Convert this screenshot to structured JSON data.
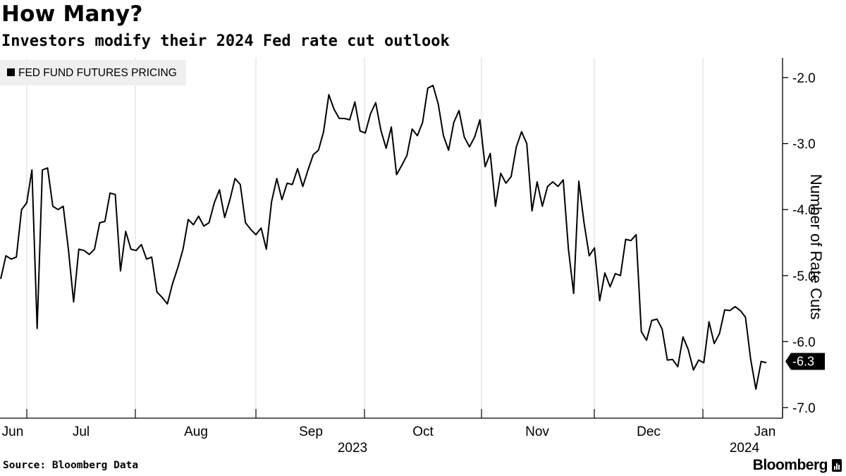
{
  "title": "How Many?",
  "subtitle": "Investors modify their 2024 Fed rate cut outlook",
  "source": "Source: Bloomberg Data",
  "brand": "Bloomberg",
  "colors": {
    "line": "#000000",
    "grid": "#d9d9d9",
    "legend_bg": "#efefef",
    "callout_bg": "#000000"
  },
  "chart_data": {
    "type": "line",
    "title": "How Many?",
    "subtitle": "Investors modify their 2024 Fed rate cut outlook",
    "ylabel": "Number of Rate Cuts",
    "xlabel": "",
    "legend": [
      "FED FUND FUTURES PRICING"
    ],
    "legend_position": "top-left",
    "y_axis_side": "right",
    "ylim": [
      -7.0,
      -2.0
    ],
    "y_ticks": [
      "-2.0",
      "-3.0",
      "-4.0",
      "-5.0",
      "-6.0",
      "-7.0"
    ],
    "x_ticks": [
      "Jun",
      "Jul",
      "Aug",
      "Sep",
      "Oct",
      "Nov",
      "Dec",
      "Jan"
    ],
    "x_year_labels": [
      "2023",
      "2024"
    ],
    "last_value_label": "-6.3",
    "series": [
      {
        "name": "FED FUND FUTURES PRICING",
        "values": [
          -5.05,
          -4.7,
          -4.75,
          -4.72,
          -4.0,
          -3.9,
          -3.4,
          -5.8,
          -3.4,
          -3.37,
          -3.95,
          -4.0,
          -3.95,
          -4.6,
          -5.4,
          -4.6,
          -4.62,
          -4.68,
          -4.6,
          -4.2,
          -4.18,
          -3.75,
          -3.77,
          -4.93,
          -4.33,
          -4.6,
          -4.62,
          -4.53,
          -4.75,
          -4.72,
          -5.25,
          -5.33,
          -5.43,
          -5.12,
          -4.88,
          -4.6,
          -4.15,
          -4.23,
          -4.1,
          -4.25,
          -4.2,
          -3.9,
          -3.7,
          -4.12,
          -3.85,
          -3.53,
          -3.62,
          -4.2,
          -4.3,
          -4.38,
          -4.28,
          -4.6,
          -3.88,
          -3.53,
          -3.85,
          -3.6,
          -3.62,
          -3.38,
          -3.65,
          -3.4,
          -3.17,
          -3.1,
          -2.82,
          -2.26,
          -2.48,
          -2.62,
          -2.62,
          -2.64,
          -2.37,
          -2.81,
          -2.84,
          -2.55,
          -2.38,
          -2.8,
          -3.07,
          -2.75,
          -3.47,
          -3.33,
          -3.18,
          -2.78,
          -2.88,
          -2.68,
          -2.16,
          -2.12,
          -2.4,
          -2.88,
          -3.1,
          -2.68,
          -2.5,
          -2.9,
          -3.05,
          -2.9,
          -2.64,
          -3.35,
          -3.15,
          -3.95,
          -3.45,
          -3.6,
          -3.5,
          -3.05,
          -2.82,
          -3.0,
          -4.02,
          -3.58,
          -3.95,
          -3.65,
          -3.58,
          -3.65,
          -3.55,
          -4.6,
          -5.27,
          -3.57,
          -4.2,
          -4.7,
          -4.58,
          -5.38,
          -4.96,
          -5.17,
          -4.97,
          -5.0,
          -4.45,
          -4.47,
          -4.38,
          -5.85,
          -5.98,
          -5.68,
          -5.66,
          -5.81,
          -6.28,
          -6.27,
          -6.38,
          -5.93,
          -6.12,
          -6.43,
          -6.28,
          -6.32,
          -5.7,
          -6.03,
          -5.88,
          -5.52,
          -5.53,
          -5.47,
          -5.53,
          -5.63,
          -6.27,
          -6.72,
          -6.3,
          -6.32
        ]
      }
    ]
  }
}
